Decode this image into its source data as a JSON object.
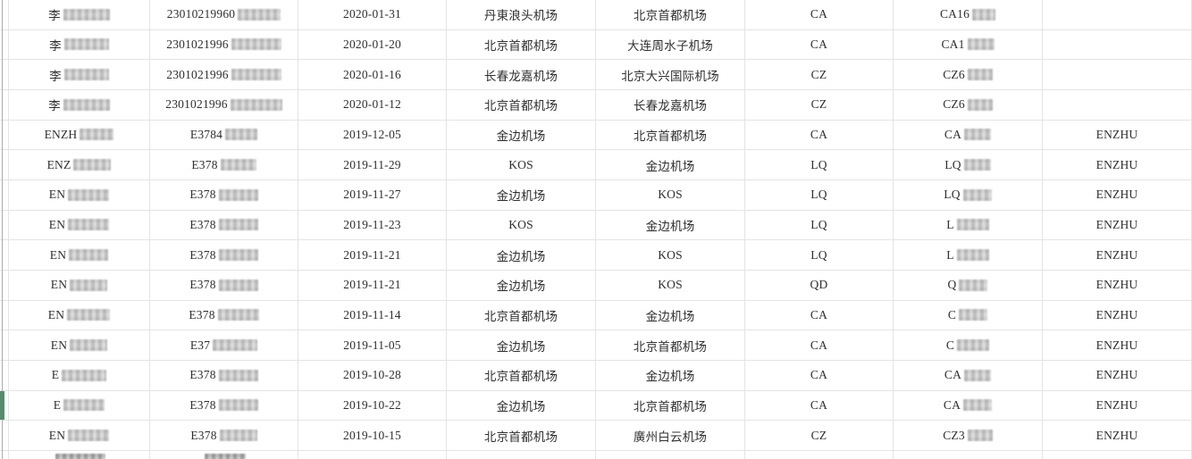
{
  "table": {
    "description_labels": {
      "passenger_name": "name",
      "id_number": "id-number",
      "flight_date": "flight-date",
      "departure_airport": "departure-airport",
      "arrival_airport": "arrival-airport",
      "airline_code": "airline-code",
      "flight_number": "flight-number",
      "holder_name": "holder-name"
    },
    "column_keys": [
      "passenger_name",
      "id_number",
      "flight_date",
      "departure_airport",
      "arrival_airport",
      "airline_code",
      "flight_number",
      "holder_name"
    ],
    "colors": {
      "grid_line": "#e4e4e4",
      "text": "#2f2f2f",
      "green_row_marker": "#578a6e",
      "outer_left_border": "#ababab",
      "redaction_gray": "#d2d2d2"
    },
    "rows": [
      {
        "passenger_name": {
          "prefix": "李",
          "blur_width": 52
        },
        "id_number": {
          "prefix": "23010219960",
          "blur_width": 48
        },
        "flight_date": "2020-01-31",
        "departure_airport": "丹東浪头机场",
        "arrival_airport": "北京首都机场",
        "airline_code": "CA",
        "flight_number": {
          "prefix": "CA16",
          "blur_width": 26
        },
        "holder_name": ""
      },
      {
        "passenger_name": {
          "prefix": "李",
          "blur_width": 50
        },
        "id_number": {
          "prefix": "2301021996",
          "blur_width": 56
        },
        "flight_date": "2020-01-20",
        "departure_airport": "北京首都机场",
        "arrival_airport": "大连周水子机场",
        "airline_code": "CA",
        "flight_number": {
          "prefix": "CA1",
          "blur_width": 30
        },
        "holder_name": ""
      },
      {
        "passenger_name": {
          "prefix": "李",
          "blur_width": 50
        },
        "id_number": {
          "prefix": "2301021996",
          "blur_width": 56
        },
        "flight_date": "2020-01-16",
        "departure_airport": "长春龙嘉机场",
        "arrival_airport": "北京大兴国际机场",
        "airline_code": "CZ",
        "flight_number": {
          "prefix": "CZ6",
          "blur_width": 28
        },
        "holder_name": ""
      },
      {
        "passenger_name": {
          "prefix": "李",
          "blur_width": 52
        },
        "id_number": {
          "prefix": "2301021996",
          "blur_width": 58
        },
        "flight_date": "2020-01-12",
        "departure_airport": "北京首都机场",
        "arrival_airport": "长春龙嘉机场",
        "airline_code": "CZ",
        "flight_number": {
          "prefix": "CZ6",
          "blur_width": 28
        },
        "holder_name": ""
      },
      {
        "passenger_name": {
          "prefix": "ENZH",
          "blur_width": 38
        },
        "id_number": {
          "prefix": "E3784",
          "blur_width": 36
        },
        "flight_date": "2019-12-05",
        "departure_airport": "金边机场",
        "arrival_airport": "北京首都机场",
        "airline_code": "CA",
        "flight_number": {
          "prefix": "CA",
          "blur_width": 30
        },
        "holder_name": "ENZHU"
      },
      {
        "passenger_name": {
          "prefix": "ENZ",
          "blur_width": 42
        },
        "id_number": {
          "prefix": "E378",
          "blur_width": 40
        },
        "flight_date": "2019-11-29",
        "departure_airport": "KOS",
        "arrival_airport": "金边机场",
        "airline_code": "LQ",
        "flight_number": {
          "prefix": "LQ",
          "blur_width": 30
        },
        "holder_name": "ENZHU"
      },
      {
        "passenger_name": {
          "prefix": "EN",
          "blur_width": 46
        },
        "id_number": {
          "prefix": "E378",
          "blur_width": 44
        },
        "flight_date": "2019-11-27",
        "departure_airport": "金边机场",
        "arrival_airport": "KOS",
        "airline_code": "LQ",
        "flight_number": {
          "prefix": "LQ",
          "blur_width": 32
        },
        "holder_name": "ENZHU"
      },
      {
        "passenger_name": {
          "prefix": "EN",
          "blur_width": 46
        },
        "id_number": {
          "prefix": "E378",
          "blur_width": 44
        },
        "flight_date": "2019-11-23",
        "departure_airport": "KOS",
        "arrival_airport": "金边机场",
        "airline_code": "LQ",
        "flight_number": {
          "prefix": "L",
          "blur_width": 36
        },
        "holder_name": "ENZHU"
      },
      {
        "passenger_name": {
          "prefix": "EN",
          "blur_width": 44
        },
        "id_number": {
          "prefix": "E378",
          "blur_width": 44
        },
        "flight_date": "2019-11-21",
        "departure_airport": "金边机场",
        "arrival_airport": "KOS",
        "airline_code": "LQ",
        "flight_number": {
          "prefix": "L",
          "blur_width": 36
        },
        "holder_name": "ENZHU"
      },
      {
        "passenger_name": {
          "prefix": "EN",
          "blur_width": 42
        },
        "id_number": {
          "prefix": "E378",
          "blur_width": 44
        },
        "flight_date": "2019-11-21",
        "departure_airport": "金边机场",
        "arrival_airport": "KOS",
        "airline_code": "QD",
        "flight_number": {
          "prefix": "Q",
          "blur_width": 32
        },
        "holder_name": "ENZHU"
      },
      {
        "passenger_name": {
          "prefix": "EN",
          "blur_width": 48
        },
        "id_number": {
          "prefix": "E378",
          "blur_width": 46
        },
        "flight_date": "2019-11-14",
        "departure_airport": "北京首都机场",
        "arrival_airport": "金边机场",
        "airline_code": "CA",
        "flight_number": {
          "prefix": "C",
          "blur_width": 32
        },
        "holder_name": "ENZHU"
      },
      {
        "passenger_name": {
          "prefix": "EN",
          "blur_width": 42
        },
        "id_number": {
          "prefix": "E37",
          "blur_width": 50
        },
        "flight_date": "2019-11-05",
        "departure_airport": "金边机场",
        "arrival_airport": "北京首都机场",
        "airline_code": "CA",
        "flight_number": {
          "prefix": "C",
          "blur_width": 36
        },
        "holder_name": "ENZHU"
      },
      {
        "passenger_name": {
          "prefix": "E",
          "blur_width": 50
        },
        "id_number": {
          "prefix": "E378",
          "blur_width": 44
        },
        "flight_date": "2019-10-28",
        "departure_airport": "北京首都机场",
        "arrival_airport": "金边机场",
        "airline_code": "CA",
        "flight_number": {
          "prefix": "CA",
          "blur_width": 30
        },
        "holder_name": "ENZHU"
      },
      {
        "marker": true,
        "passenger_name": {
          "prefix": "E",
          "blur_width": 46
        },
        "id_number": {
          "prefix": "E378",
          "blur_width": 44
        },
        "flight_date": "2019-10-22",
        "departure_airport": "金边机场",
        "arrival_airport": "北京首都机场",
        "airline_code": "CA",
        "flight_number": {
          "prefix": "CA",
          "blur_width": 32
        },
        "holder_name": "ENZHU"
      },
      {
        "passenger_name": {
          "prefix": "EN",
          "blur_width": 46
        },
        "id_number": {
          "prefix": "E378",
          "blur_width": 42
        },
        "flight_date": "2019-10-15",
        "departure_airport": "北京首都机场",
        "arrival_airport": "廣州白云机场",
        "airline_code": "CZ",
        "flight_number": {
          "prefix": "CZ3",
          "blur_width": 28
        },
        "holder_name": "ENZHU"
      }
    ],
    "partial_row": {
      "passenger_name_blur_width": 56,
      "id_number_blur_width": 46
    }
  }
}
